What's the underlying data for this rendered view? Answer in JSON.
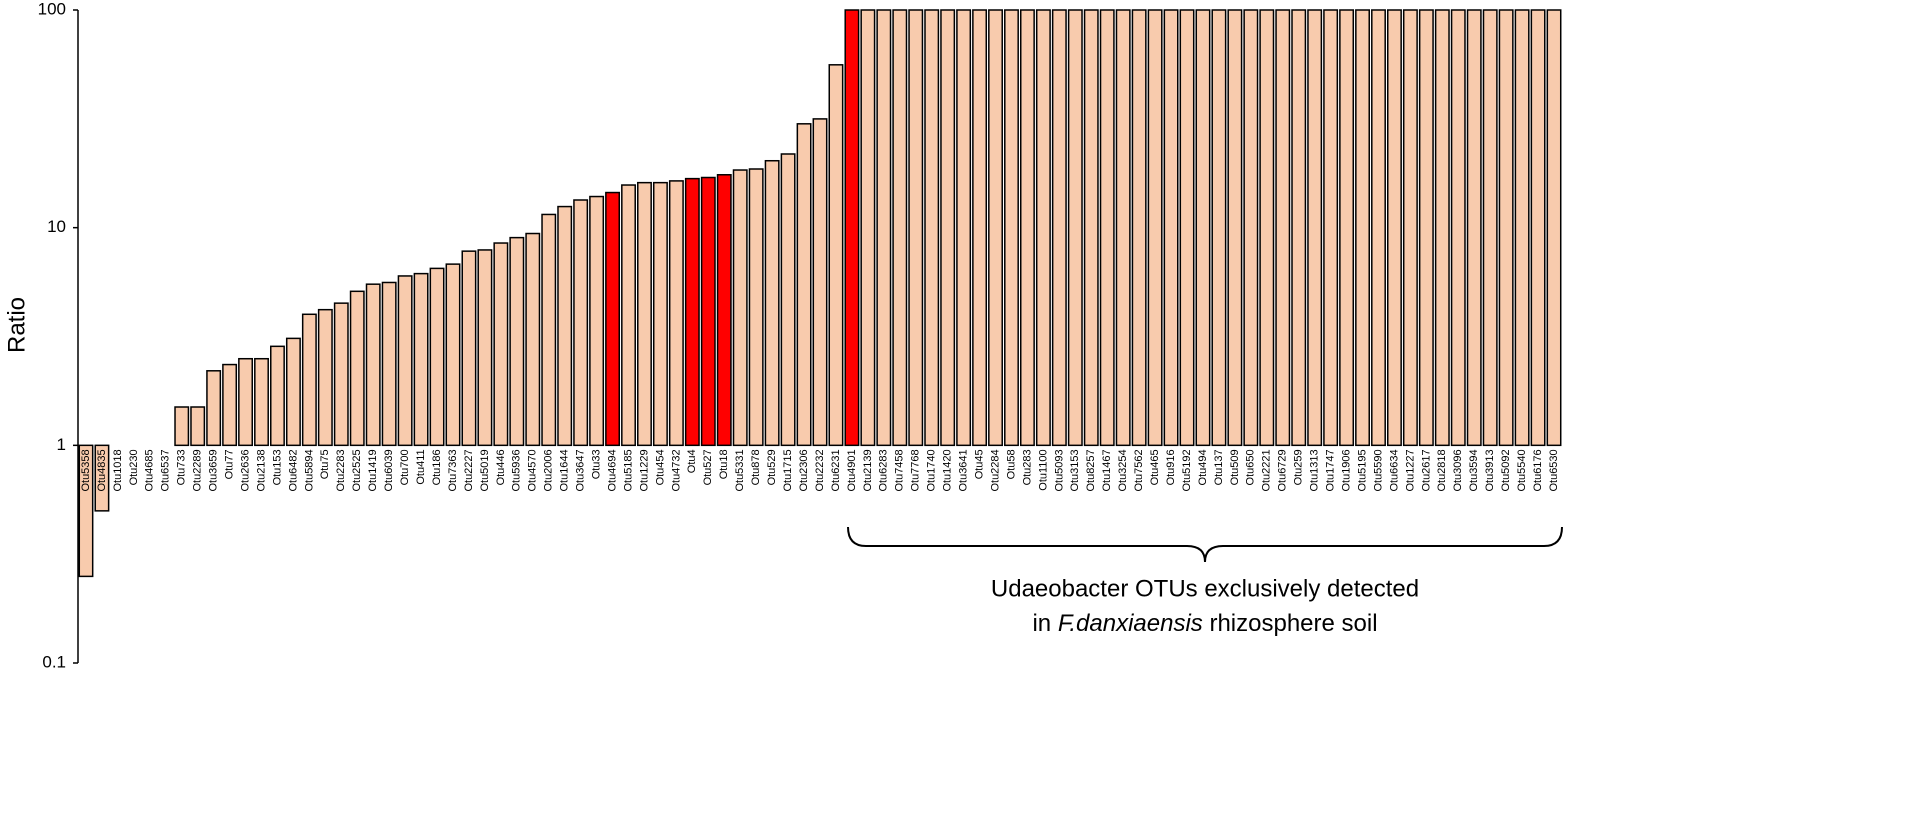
{
  "chart_data": {
    "type": "bar",
    "y_label": "Ratio",
    "log_y": true,
    "ylim": [
      0.1,
      100
    ],
    "yticks": [
      0.1,
      1,
      10,
      100
    ],
    "categories": [
      "Otu5358",
      "Otu4835",
      "Otu1018",
      "Otu230",
      "Otu4685",
      "Otu6537",
      "Otu733",
      "Otu2289",
      "Otu3659",
      "Otu77",
      "Otu2636",
      "Otu2138",
      "Otu153",
      "Otu6482",
      "Otu5894",
      "Otu75",
      "Otu2283",
      "Otu2525",
      "Otu1419",
      "Otu6039",
      "Otu700",
      "Otu411",
      "Otu186",
      "Otu7363",
      "Otu2227",
      "Otu5019",
      "Otu446",
      "Otu5936",
      "Otu4570",
      "Otu2006",
      "Otu1644",
      "Otu3647",
      "Otu33",
      "Otu4694",
      "Otu5185",
      "Otu1229",
      "Otu454",
      "Otu4732",
      "Otu4",
      "Otu527",
      "Otu18",
      "Otu5331",
      "Otu878",
      "Otu529",
      "Otu1715",
      "Otu2306",
      "Otu2232",
      "Otu6231",
      "Otu4901",
      "Otu2139",
      "Otu6283",
      "Otu7458",
      "Otu7768",
      "Otu1740",
      "Otu1420",
      "Otu3641",
      "Otu45",
      "Otu2284",
      "Otu58",
      "Otu283",
      "Otu1100",
      "Otu5093",
      "Otu3153",
      "Otu8257",
      "Otu1467",
      "Otu3254",
      "Otu7562",
      "Otu465",
      "Otu916",
      "Otu5192",
      "Otu494",
      "Otu137",
      "Otu509",
      "Otu650",
      "Otu2221",
      "Otu6729",
      "Otu259",
      "Otu1313",
      "Otu1747",
      "Otu1906",
      "Otu5195",
      "Otu5590",
      "Otu6634",
      "Otu1227",
      "Otu2617",
      "Otu2818",
      "Otu3096",
      "Otu3594",
      "Otu3913",
      "Otu5092",
      "Otu5540",
      "Otu6176",
      "Otu6530"
    ],
    "values": [
      0.25,
      0.5,
      1,
      1,
      1,
      1,
      1.5,
      1.5,
      2.2,
      2.35,
      2.5,
      2.5,
      2.85,
      3.1,
      4.0,
      4.2,
      4.5,
      5.1,
      5.5,
      5.6,
      6.0,
      6.15,
      6.5,
      6.8,
      7.8,
      7.9,
      8.5,
      9.0,
      9.4,
      11.5,
      12.5,
      13.4,
      13.9,
      14.5,
      15.7,
      16.1,
      16.1,
      16.4,
      16.8,
      17.0,
      17.5,
      18.4,
      18.6,
      20.3,
      21.8,
      30,
      31.6,
      56,
      100,
      100,
      100,
      100,
      100,
      100,
      100,
      100,
      100,
      100,
      100,
      100,
      100,
      100,
      100,
      100,
      100,
      100,
      100,
      100,
      100,
      100,
      100,
      100,
      100,
      100,
      100,
      100,
      100,
      100,
      100,
      100,
      100,
      100,
      100,
      100,
      100,
      100,
      100,
      100,
      100,
      100,
      100,
      100,
      100
    ],
    "colors": [
      "#f8cbad",
      "#f8cbad",
      "#f8cbad",
      "#f8cbad",
      "#f8cbad",
      "#f8cbad",
      "#f8cbad",
      "#f8cbad",
      "#f8cbad",
      "#f8cbad",
      "#f8cbad",
      "#f8cbad",
      "#f8cbad",
      "#f8cbad",
      "#f8cbad",
      "#f8cbad",
      "#f8cbad",
      "#f8cbad",
      "#f8cbad",
      "#f8cbad",
      "#f8cbad",
      "#f8cbad",
      "#f8cbad",
      "#f8cbad",
      "#f8cbad",
      "#f8cbad",
      "#f8cbad",
      "#f8cbad",
      "#f8cbad",
      "#f8cbad",
      "#f8cbad",
      "#f8cbad",
      "#f8cbad",
      "#ff0000",
      "#f8cbad",
      "#f8cbad",
      "#f8cbad",
      "#f8cbad",
      "#ff0000",
      "#ff0000",
      "#ff0000",
      "#f8cbad",
      "#f8cbad",
      "#f8cbad",
      "#f8cbad",
      "#f8cbad",
      "#f8cbad",
      "#f8cbad",
      "#ff0000",
      "#f8cbad",
      "#f8cbad",
      "#f8cbad",
      "#f8cbad",
      "#f8cbad",
      "#f8cbad",
      "#f8cbad",
      "#f8cbad",
      "#f8cbad",
      "#f8cbad",
      "#f8cbad",
      "#f8cbad",
      "#f8cbad",
      "#f8cbad",
      "#f8cbad",
      "#f8cbad",
      "#f8cbad",
      "#f8cbad",
      "#f8cbad",
      "#f8cbad",
      "#f8cbad",
      "#f8cbad",
      "#f8cbad",
      "#f8cbad",
      "#f8cbad",
      "#f8cbad",
      "#f8cbad",
      "#f8cbad",
      "#f8cbad",
      "#f8cbad",
      "#f8cbad",
      "#f8cbad",
      "#f8cbad",
      "#f8cbad",
      "#f8cbad",
      "#f8cbad",
      "#f8cbad",
      "#f8cbad",
      "#f8cbad",
      "#f8cbad",
      "#f8cbad",
      "#f8cbad",
      "#f8cbad",
      "#f8cbad"
    ],
    "annotation": {
      "line1": "Udaeobacter OTUs exclusively detected",
      "line2_start": "in ",
      "line2_italic": "F.danxiaensis",
      "line2_end": " rhizosphere soil"
    }
  }
}
